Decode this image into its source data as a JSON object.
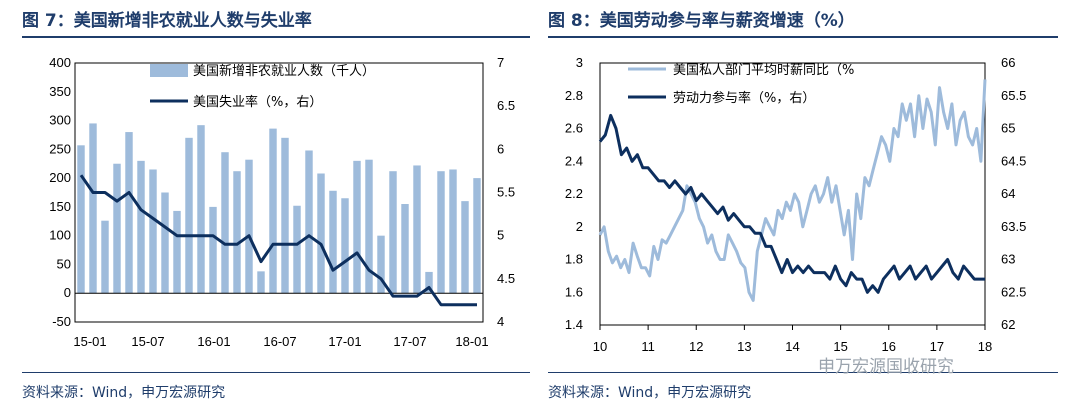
{
  "left": {
    "title": "图 7：美国新增非农就业人数与失业率",
    "source": "资料来源：Wind，申万宏源研究",
    "colors": {
      "bar": "#9ebbdb",
      "line": "#0d2f5e"
    },
    "chart_data": {
      "type": "bar",
      "title": "美国新增非农就业人数与失业率",
      "x_tick_labels": [
        "15-01",
        "15-07",
        "16-01",
        "16-07",
        "17-01",
        "17-07",
        "18-01"
      ],
      "y_left": {
        "range": [
          -50,
          400
        ],
        "ticks": [
          "400",
          "350",
          "300",
          "250",
          "200",
          "150",
          "100",
          "50",
          "0",
          "-50"
        ]
      },
      "y_right": {
        "range": [
          4,
          7
        ],
        "ticks": [
          "7",
          "6.5",
          "6",
          "5.5",
          "5",
          "4.5",
          "4"
        ]
      },
      "series": [
        {
          "name": "美国新增非农就业人数（千人）",
          "axis": "left",
          "kind": "bar",
          "values": [
            257,
            295,
            126,
            225,
            280,
            230,
            215,
            175,
            143,
            270,
            292,
            150,
            245,
            212,
            232,
            38,
            286,
            270,
            152,
            248,
            208,
            178,
            165,
            230,
            232,
            100,
            212,
            155,
            222,
            37,
            212,
            215,
            160,
            200
          ]
        },
        {
          "name": "美国失业率（%，右）",
          "axis": "right",
          "kind": "line",
          "values": [
            5.7,
            5.5,
            5.5,
            5.4,
            5.5,
            5.3,
            5.2,
            5.1,
            5.0,
            5.0,
            5.0,
            5.0,
            4.9,
            4.9,
            5.0,
            4.7,
            4.9,
            4.9,
            4.9,
            5.0,
            4.9,
            4.6,
            4.7,
            4.8,
            4.6,
            4.5,
            4.3,
            4.3,
            4.3,
            4.4,
            4.2,
            4.2,
            4.2,
            4.2
          ]
        }
      ]
    }
  },
  "right": {
    "title": "图 8：美国劳动参与率与薪资增速（%）",
    "source": "资料来源：Wind，申万宏源研究",
    "watermark": "申万宏源国收研究",
    "colors": {
      "wage": "#9ebbdb",
      "lfpr": "#0d2f5e"
    },
    "chart_data": {
      "type": "line",
      "title": "美国劳动参与率与薪资增速（%）",
      "x_tick_labels": [
        "10",
        "11",
        "12",
        "13",
        "14",
        "15",
        "16",
        "17",
        "18"
      ],
      "y_left": {
        "range": [
          1.4,
          3.0
        ],
        "ticks": [
          "3",
          "2.8",
          "2.6",
          "2.4",
          "2.2",
          "2",
          "1.8",
          "1.6",
          "1.4"
        ]
      },
      "y_right": {
        "range": [
          62.0,
          66.0
        ],
        "ticks": [
          "66",
          "65.5",
          "65",
          "64.5",
          "64",
          "63.5",
          "63",
          "62.5",
          "62"
        ]
      },
      "series": [
        {
          "name": "美国私人部门平均时薪同比（%",
          "axis": "left",
          "kind": "line",
          "values": [
            1.95,
            2.0,
            1.85,
            1.78,
            1.82,
            1.75,
            1.8,
            1.72,
            1.9,
            1.82,
            1.75,
            1.75,
            1.7,
            1.88,
            1.8,
            1.92,
            1.9,
            1.95,
            2.0,
            2.05,
            2.1,
            2.25,
            2.2,
            2.15,
            2.05,
            2.0,
            1.9,
            1.95,
            1.85,
            1.8,
            1.8,
            1.95,
            1.9,
            1.85,
            1.78,
            1.75,
            1.6,
            1.55,
            1.85,
            1.95,
            2.05,
            2.0,
            1.95,
            2.1,
            2.05,
            2.15,
            2.1,
            2.2,
            2.15,
            2.0,
            2.1,
            2.2,
            2.25,
            2.15,
            2.2,
            2.3,
            2.15,
            2.25,
            2.1,
            1.95,
            2.1,
            1.8,
            2.2,
            2.05,
            2.3,
            2.25,
            2.35,
            2.45,
            2.55,
            2.5,
            2.4,
            2.6,
            2.55,
            2.75,
            2.65,
            2.75,
            2.55,
            2.8,
            2.6,
            2.78,
            2.7,
            2.5,
            2.85,
            2.7,
            2.6,
            2.75,
            2.5,
            2.65,
            2.7,
            2.55,
            2.5,
            2.6,
            2.4,
            2.9
          ]
        },
        {
          "name": "劳动力参与率（%，右）",
          "axis": "right",
          "kind": "line",
          "values": [
            64.8,
            64.9,
            65.2,
            65.0,
            64.6,
            64.7,
            64.5,
            64.6,
            64.4,
            64.4,
            64.3,
            64.2,
            64.2,
            64.1,
            64.2,
            64.1,
            64.0,
            64.1,
            63.9,
            64.0,
            63.9,
            63.8,
            63.7,
            63.8,
            63.6,
            63.7,
            63.6,
            63.5,
            63.5,
            63.4,
            63.4,
            63.2,
            63.2,
            63.0,
            62.8,
            63.0,
            62.8,
            62.9,
            62.8,
            62.9,
            62.8,
            62.8,
            62.8,
            62.7,
            62.9,
            62.7,
            62.6,
            62.8,
            62.7,
            62.7,
            62.5,
            62.6,
            62.5,
            62.7,
            62.8,
            62.9,
            62.7,
            62.8,
            62.9,
            62.7,
            62.8,
            62.9,
            62.7,
            62.8,
            62.9,
            63.0,
            62.8,
            62.7,
            62.9,
            62.8,
            62.7,
            62.7,
            62.7
          ]
        }
      ]
    }
  }
}
